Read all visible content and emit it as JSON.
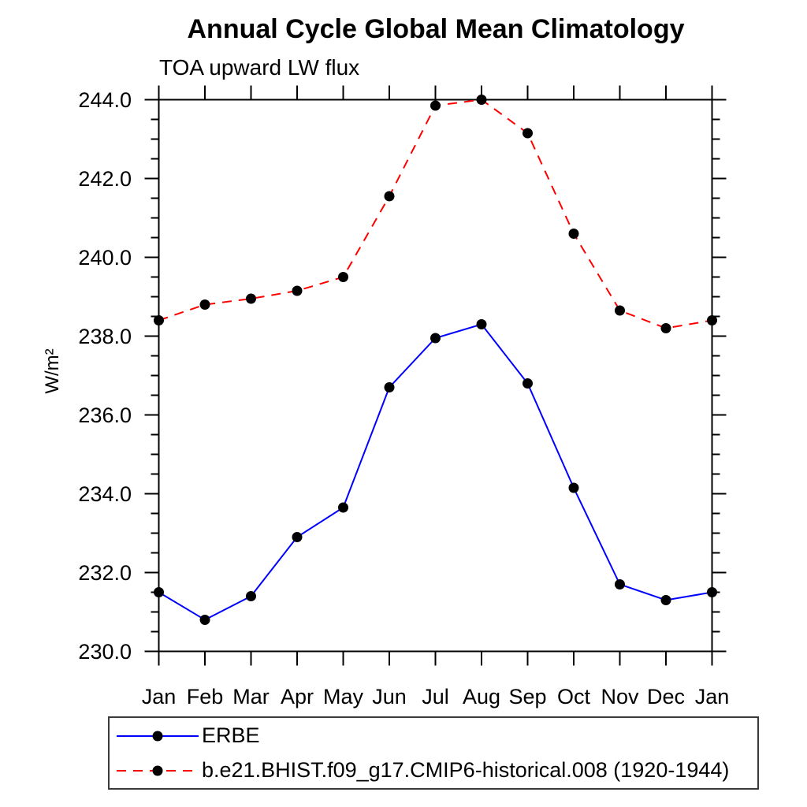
{
  "page": {
    "background": "#ffffff"
  },
  "chart_data": {
    "type": "line",
    "title": "Annual Cycle Global Mean Climatology",
    "subtitle": "TOA upward LW flux",
    "ylabel": "W/m²",
    "x_categories": [
      "Jan",
      "Feb",
      "Mar",
      "Apr",
      "May",
      "Jun",
      "Jul",
      "Aug",
      "Sep",
      "Oct",
      "Nov",
      "Dec",
      "Jan"
    ],
    "ylim": [
      230.0,
      244.0
    ],
    "y_major_step": 2.0,
    "y_minor_step": 0.5,
    "grid": false,
    "frame": "box",
    "legend_position": "bottom-left-box",
    "axis_color": "#000000",
    "marker_color": "#000000",
    "series": [
      {
        "name": "ERBE",
        "color": "#0000ff",
        "style": "solid",
        "marker": "circle",
        "values": [
          231.5,
          230.8,
          231.4,
          232.9,
          233.65,
          236.7,
          237.95,
          238.3,
          236.8,
          234.15,
          231.7,
          231.3,
          231.5
        ]
      },
      {
        "name": "b.e21.BHIST.f09_g17.CMIP6-historical.008 (1920-1944)",
        "color": "#ff0000",
        "style": "dashed",
        "marker": "circle",
        "values": [
          238.4,
          238.8,
          238.95,
          239.15,
          239.5,
          241.55,
          243.85,
          244.0,
          243.15,
          240.6,
          238.65,
          238.2,
          238.4
        ]
      }
    ]
  }
}
